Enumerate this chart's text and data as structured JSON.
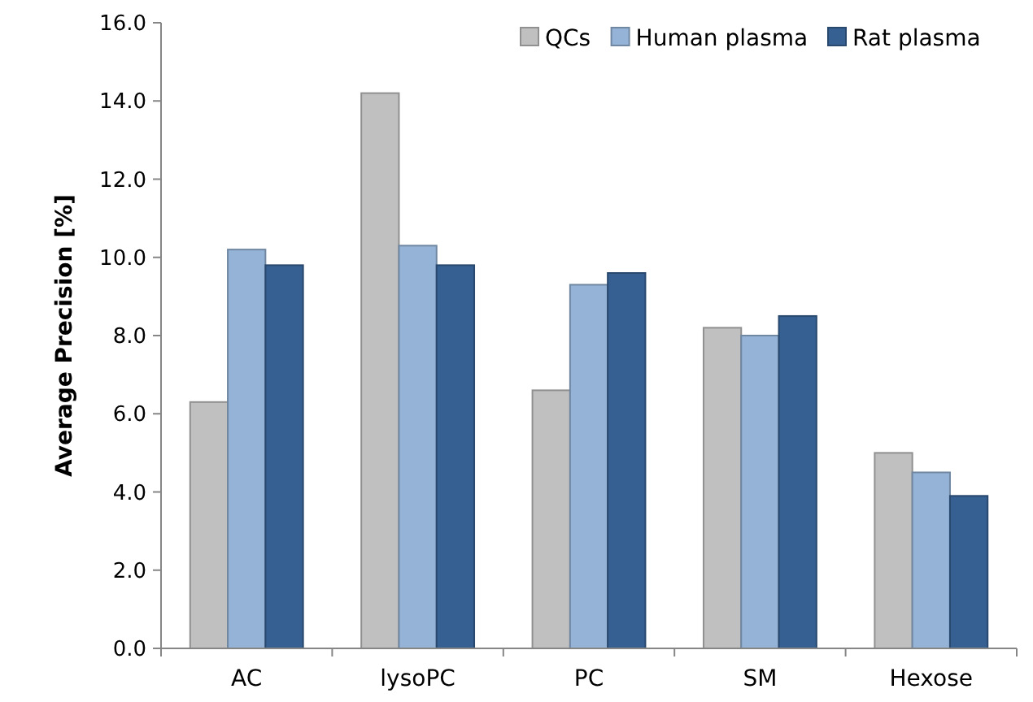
{
  "chart_data": {
    "type": "bar",
    "ylabel": "Average Precision [%]",
    "categories": [
      "AC",
      "lysoPC",
      "PC",
      "SM",
      "Hexose"
    ],
    "series": [
      {
        "name": "QCs",
        "color": "#c0c0c0",
        "values": [
          6.3,
          14.2,
          6.6,
          8.2,
          5.0
        ]
      },
      {
        "name": "Human plasma",
        "color": "#95b3d7",
        "values": [
          10.2,
          10.3,
          9.3,
          8.0,
          4.5
        ]
      },
      {
        "name": "Rat plasma",
        "color": "#366092",
        "values": [
          9.8,
          9.8,
          9.6,
          8.5,
          3.9
        ]
      }
    ],
    "ylim": [
      0,
      16
    ],
    "yticks": [
      {
        "value": 0,
        "label": "0.0"
      },
      {
        "value": 2,
        "label": "2.0"
      },
      {
        "value": 4,
        "label": "4.0"
      },
      {
        "value": 6,
        "label": "6.0"
      },
      {
        "value": 8,
        "label": "8.0"
      },
      {
        "value": 10,
        "label": "10.0"
      },
      {
        "value": 12,
        "label": "12.0"
      },
      {
        "value": 14,
        "label": "14.0"
      },
      {
        "value": 16,
        "label": "16.0"
      }
    ],
    "grid": false,
    "legend": "top right"
  }
}
